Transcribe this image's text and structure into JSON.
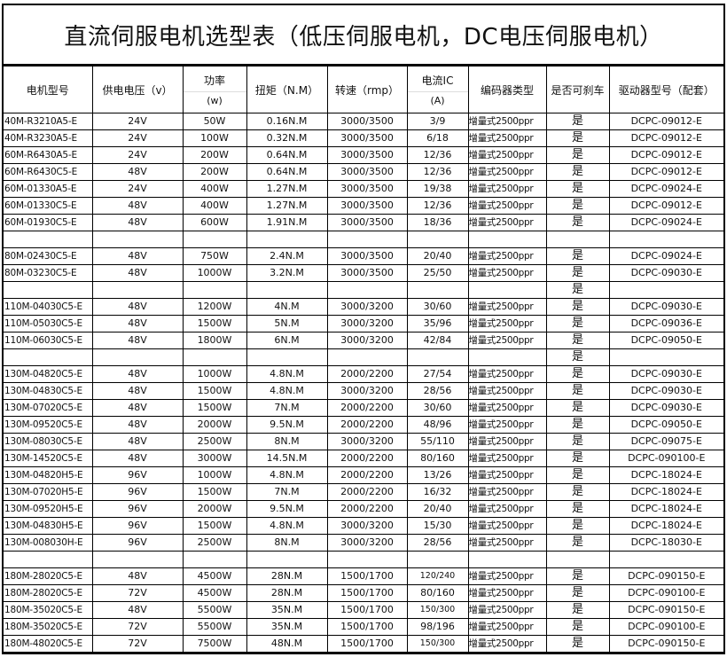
{
  "title": "直流伺服电机选型表（低压伺服电机，DC电压伺服电机）",
  "headers": [
    {
      "main": "电机型号"
    },
    {
      "main": "供电电压（v）"
    },
    {
      "main": "功率",
      "sub": "(w)"
    },
    {
      "main": "扭矩（N.M）"
    },
    {
      "main": "转速（rmp）"
    },
    {
      "main": "电流IC",
      "sub": "(A)"
    },
    {
      "main": "编码器类型"
    },
    {
      "main": "是否可刹车"
    },
    {
      "main": "驱动器型号（配套）"
    }
  ],
  "rows": [
    [
      "40M-R3210A5-E",
      "24V",
      "50W",
      "0.16N.M",
      "3000/3500",
      "3/9",
      "增量式2500ppr",
      "是",
      "DCPC-09012-E"
    ],
    [
      "40M-R3230A5-E",
      "24V",
      "100W",
      "0.32N.M",
      "3000/3500",
      "6/18",
      "增量式2500ppr",
      "是",
      "DCPC-09012-E"
    ],
    [
      "60M-R6430A5-E",
      "24V",
      "200W",
      "0.64N.M",
      "3000/3500",
      "12/36",
      "增量式2500ppr",
      "是",
      "DCPC-09012-E"
    ],
    [
      "60M-R6430C5-E",
      "48V",
      "200W",
      "0.64N.M",
      "3000/3500",
      "12/36",
      "增量式2500ppr",
      "是",
      "DCPC-09012-E"
    ],
    [
      "60M-01330A5-E",
      "24V",
      "400W",
      "1.27N.M",
      "3000/3500",
      "19/38",
      "增量式2500ppr",
      "是",
      "DCPC-09024-E"
    ],
    [
      "60M-01330C5-E",
      "48V",
      "400W",
      "1.27N.M",
      "3000/3500",
      "12/36",
      "增量式2500ppr",
      "是",
      "DCPC-09012-E"
    ],
    [
      "60M-01930C5-E",
      "48V",
      "600W",
      "1.91N.M",
      "3000/3500",
      "18/36",
      "增量式2500ppr",
      "是",
      "DCPC-09024-E"
    ],
    [
      "",
      "",
      "",
      "",
      "",
      "",
      "",
      "",
      ""
    ],
    [
      "80M-02430C5-E",
      "48V",
      "750W",
      "2.4N.M",
      "3000/3500",
      "20/40",
      "增量式2500ppr",
      "是",
      "DCPC-09024-E"
    ],
    [
      "80M-03230C5-E",
      "48V",
      "1000W",
      "3.2N.M",
      "3000/3500",
      "25/50",
      "增量式2500ppr",
      "是",
      "DCPC-09030-E"
    ],
    [
      "",
      "",
      "",
      "",
      "",
      "",
      "",
      "是",
      ""
    ],
    [
      "110M-04030C5-E",
      "48V",
      "1200W",
      "4N.M",
      "3000/3200",
      "30/60",
      "增量式2500ppr",
      "是",
      "DCPC-09030-E"
    ],
    [
      "110M-05030C5-E",
      "48V",
      "1500W",
      "5N.M",
      "3000/3200",
      "35/96",
      "增量式2500ppr",
      "是",
      "DCPC-09036-E"
    ],
    [
      "110M-06030C5-E",
      "48V",
      "1800W",
      "6N.M",
      "3000/3200",
      "42/84",
      "增量式2500ppr",
      "是",
      "DCPC-09050-E"
    ],
    [
      "",
      "",
      "",
      "",
      "",
      "",
      "",
      "是",
      ""
    ],
    [
      "130M-04820C5-E",
      "48V",
      "1000W",
      "4.8N.M",
      "2000/2200",
      "27/54",
      "增量式2500ppr",
      "是",
      "DCPC-09030-E"
    ],
    [
      "130M-04830C5-E",
      "48V",
      "1500W",
      "4.8N.M",
      "3000/3200",
      "28/56",
      "增量式2500ppr",
      "是",
      "DCPC-09030-E"
    ],
    [
      "130M-07020C5-E",
      "48V",
      "1500W",
      "7N.M",
      "2000/2200",
      "30/60",
      "增量式2500ppr",
      "是",
      "DCPC-09030-E"
    ],
    [
      "130M-09520C5-E",
      "48V",
      "2000W",
      "9.5N.M",
      "2000/2200",
      "48/96",
      "增量式2500ppr",
      "是",
      "DCPC-09050-E"
    ],
    [
      "130M-08030C5-E",
      "48V",
      "2500W",
      "8N.M",
      "3000/3200",
      "55/110",
      "增量式2500ppr",
      "是",
      "DCPC-09075-E"
    ],
    [
      "130M-14520C5-E",
      "48V",
      "3000W",
      "14.5N.M",
      "2000/2200",
      "80/160",
      "增量式2500ppr",
      "是",
      "DCPC-090100-E"
    ],
    [
      "130M-04820H5-E",
      "96V",
      "1000W",
      "4.8N.M",
      "2000/2200",
      "13/26",
      "增量式2500ppr",
      "是",
      "DCPC-18024-E"
    ],
    [
      "130M-07020H5-E",
      "96V",
      "1500W",
      "7N.M",
      "2000/2200",
      "16/32",
      "增量式2500ppr",
      "是",
      "DCPC-18024-E"
    ],
    [
      "130M-09520H5-E",
      "96V",
      "2000W",
      "9.5N.M",
      "2000/2200",
      "20/40",
      "增量式2500ppr",
      "是",
      "DCPC-18024-E"
    ],
    [
      "130M-04830H5-E",
      "96V",
      "1500W",
      "4.8N.M",
      "3000/3200",
      "15/30",
      "增量式2500ppr",
      "是",
      "DCPC-18024-E"
    ],
    [
      "130M-008030H-E",
      "96V",
      "2500W",
      "8N.M",
      "3000/3200",
      "28/56",
      "增量式2500ppr",
      "是",
      "DCPC-18030-E"
    ],
    [
      "",
      "",
      "",
      "",
      "",
      "",
      "",
      "",
      ""
    ],
    [
      "180M-28020C5-E",
      "48V",
      "4500W",
      "28N.M",
      "1500/1700",
      "120/240",
      "增量式2500ppr",
      "是",
      "DCPC-090150-E"
    ],
    [
      "180M-28020C5-E",
      "72V",
      "4500W",
      "28N.M",
      "1500/1700",
      "80/160",
      "增量式2500ppr",
      "是",
      "DCPC-090100-E"
    ],
    [
      "180M-35020C5-E",
      "48V",
      "5500W",
      "35N.M",
      "1500/1700",
      "150/300",
      "增量式2500ppr",
      "是",
      "DCPC-090150-E"
    ],
    [
      "180M-35020C5-E",
      "72V",
      "5500W",
      "35N.M",
      "1500/1700",
      "98/196",
      "增量式2500ppr",
      "是",
      "DCPC-090100-E"
    ],
    [
      "180M-48020C5-E",
      "72V",
      "7500W",
      "48N.M",
      "1500/1700",
      "150/300",
      "增量式2500ppr",
      "是",
      "DCPC-090150-E"
    ]
  ]
}
